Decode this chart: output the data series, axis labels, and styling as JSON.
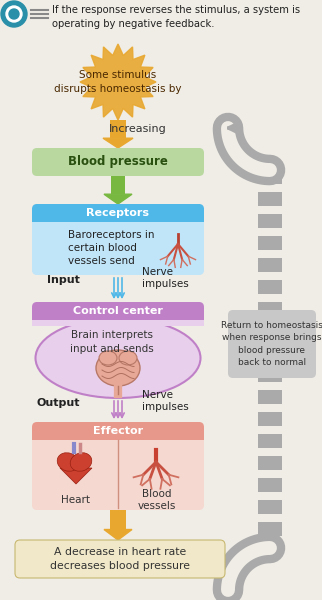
{
  "bg_color": "#f0ede6",
  "title_text": "If the response reverses the stimulus, a system is\noperating by negative feedback.",
  "stimulus_text": "Some stimulus\ndisrupts homeostasis by",
  "increasing_text": "Increasing",
  "blood_pressure_text": "Blood pressure",
  "receptors_header": "Receptors",
  "receptors_body": "Baroreceptors in\ncertain blood\nvessels send",
  "input_text": "Input",
  "nerve1_text": "Nerve\nimpulses",
  "control_header": "Control center",
  "control_body": "Brain interprets\ninput and sends",
  "output_text": "Output",
  "nerve2_text": "Nerve\nimpulses",
  "effector_header": "Effector",
  "heart_text": "Heart",
  "vessels_text": "Blood\nvessels",
  "result_text": "A decrease in heart rate\ndecreases blood pressure",
  "feedback_text": "Return to homeostasis\nwhen response brings\nblood pressure\nback to normal",
  "color_orange": "#e8a830",
  "color_orange_light": "#f5c870",
  "color_green_box": "#b8d8a0",
  "color_green_arrow": "#78b840",
  "color_blue_header": "#50b8e8",
  "color_blue_body": "#c0e4f8",
  "color_purple_header": "#c080c8",
  "color_purple_body": "#e8d0ec",
  "color_pink_header": "#e8988a",
  "color_pink_body": "#f5d8d0",
  "color_gray": "#aaaaaa",
  "color_gray_box": "#c8c8c8",
  "color_result_bg": "#f0e8c8",
  "color_white": "#ffffff",
  "color_dark_text": "#333333"
}
